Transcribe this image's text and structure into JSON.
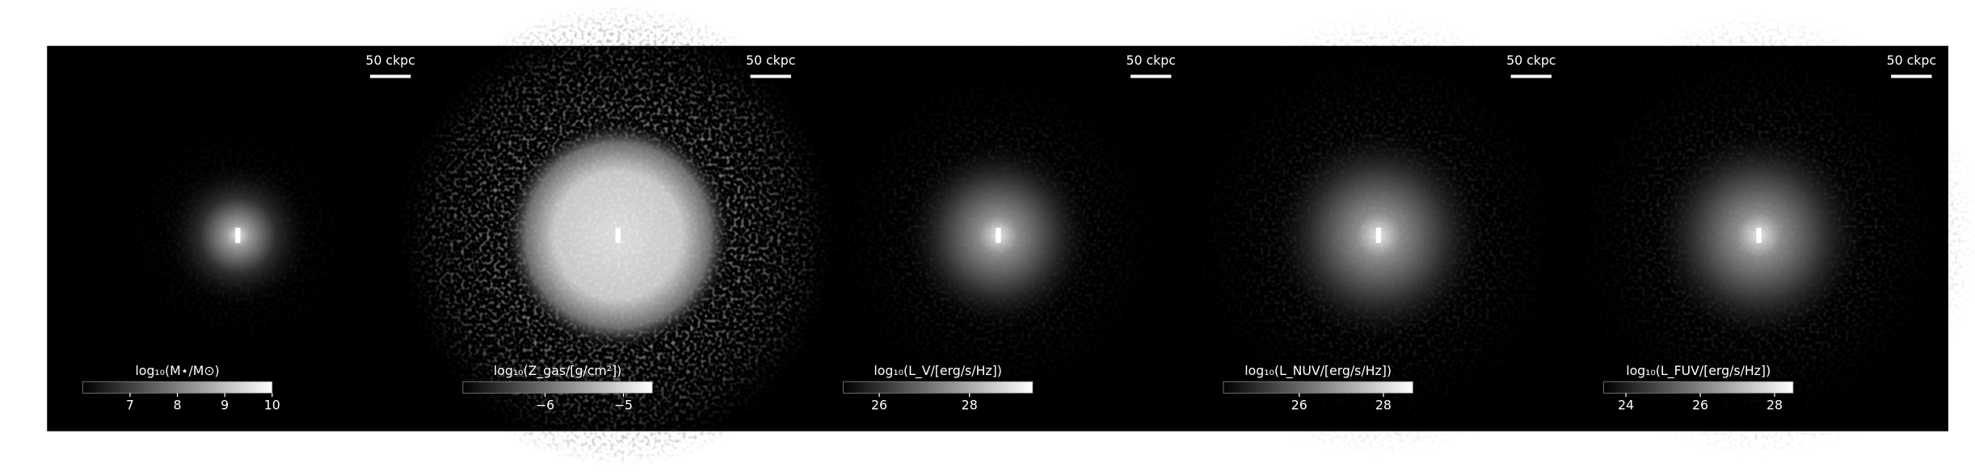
{
  "panels": [
    {
      "scale_label": "50 ckpc",
      "colorbar": {
        "label": "log₁₀(M⋆/M⊙)",
        "lim": [
          6,
          10
        ],
        "ticks": [
          7,
          8,
          9,
          10
        ]
      }
    },
    {
      "scale_label": "50 ckpc",
      "colorbar": {
        "label": "log₁₀(Z_gas/[g/cm²])",
        "lim": [
          -7.05,
          -4.63
        ],
        "ticks": [
          {
            "value": -6,
            "label": "−6"
          },
          {
            "value": -5,
            "label": "−5"
          }
        ]
      }
    },
    {
      "scale_label": "50 ckpc",
      "colorbar": {
        "label": "log₁₀(L_V/[erg/s/Hz])",
        "lim": [
          25.2,
          29.4
        ],
        "ticks": [
          26,
          28
        ]
      }
    },
    {
      "scale_label": "50 ckpc",
      "colorbar": {
        "label": "log₁₀(L_NUV/[erg/s/Hz])",
        "lim": [
          24.2,
          28.7
        ],
        "ticks": [
          26,
          28
        ]
      }
    },
    {
      "scale_label": "50 ckpc",
      "colorbar": {
        "label": "log₁₀(L_FUV/[erg/s/Hz])",
        "lim": [
          23.4,
          28.5
        ],
        "ticks": [
          24,
          26,
          28
        ]
      }
    }
  ]
}
